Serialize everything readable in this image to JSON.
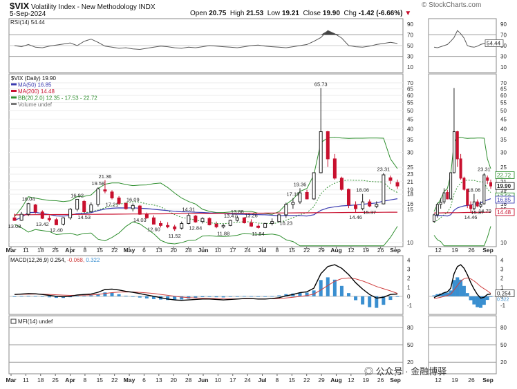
{
  "header": {
    "symbol": "$VIX",
    "name": "Volatility Index - New Methodology",
    "exchange": "INDX",
    "date": "5-Sep-2024",
    "open_label": "Open",
    "open": "20.75",
    "high_label": "High",
    "high": "21.53",
    "low_label": "Low",
    "low": "19.21",
    "close_label": "Close",
    "close": "19.90",
    "chg_label": "Chg",
    "chg": "-1.42 (-6.66%)",
    "copyright": "© StockCharts.com"
  },
  "watermark": "公众号 · 金融博驿",
  "colors": {
    "up": "#222222",
    "down": "#c8102e",
    "ma50": "#3b3bb0",
    "ma200": "#c8102e",
    "bb": "#2f8f2f",
    "macd": "#000000",
    "signal": "#d04040",
    "hist": "#3a8fd0",
    "rsi": "#555555"
  },
  "x_axis": {
    "labels": [
      "Mar",
      "11",
      "18",
      "25",
      "Apr",
      "8",
      "15",
      "22",
      "May",
      "6",
      "13",
      "20",
      "28",
      "Jun",
      "10",
      "17",
      "24",
      "Jul",
      "8",
      "15",
      "22",
      "29",
      "Aug",
      "12",
      "19",
      "26",
      "Sep"
    ],
    "zoom_labels": [
      "12",
      "19",
      "26",
      "Sep"
    ]
  },
  "chart_data": [
    {
      "type": "line",
      "name": "rsi",
      "label": "RSI(14) 54.44",
      "ylim": [
        0,
        100
      ],
      "ticks": [
        10,
        30,
        50,
        70,
        90
      ],
      "levels": [
        30,
        70
      ],
      "last_value": "54.44",
      "values": [
        50,
        48,
        52,
        47,
        46,
        49,
        51,
        53,
        55,
        50,
        58,
        62,
        56,
        49,
        47,
        45,
        46,
        44,
        43,
        45,
        47,
        49,
        48,
        46,
        45,
        47,
        46,
        48,
        50,
        49,
        48,
        47,
        46,
        48,
        50,
        51,
        49,
        48,
        47,
        46,
        48,
        50,
        52,
        58,
        65,
        78,
        72,
        64,
        50,
        48,
        47,
        49,
        52,
        54,
        56,
        54
      ]
    },
    {
      "type": "candlestick",
      "name": "price",
      "legend": [
        "$VIX (Daily) 19.90",
        "MA(50) 16.85",
        "MA(200) 14.48",
        "BB(20,2.0) 12.35 - 17.53 - 22.72",
        "Volume undef"
      ],
      "scale": "log",
      "ylim": [
        9.5,
        78
      ],
      "ticks": [
        10,
        15,
        16,
        18,
        19,
        21,
        23,
        25,
        30,
        35,
        40,
        45,
        50,
        55,
        60,
        65,
        70
      ],
      "ohlc": [
        [
          13.5,
          14.2,
          13.0,
          13.08
        ],
        [
          13.1,
          14.5,
          13.0,
          14.1
        ],
        [
          14.1,
          16.2,
          13.8,
          16.04
        ],
        [
          15.8,
          16.0,
          14.2,
          14.5
        ],
        [
          14.5,
          14.8,
          13.3,
          13.42
        ],
        [
          13.4,
          13.9,
          12.9,
          13.2
        ],
        [
          13.2,
          13.5,
          12.4,
          12.4
        ],
        [
          12.5,
          13.6,
          12.3,
          13.5
        ],
        [
          13.5,
          15.2,
          13.2,
          15.0
        ],
        [
          15.0,
          16.9,
          14.6,
          16.92
        ],
        [
          16.5,
          16.8,
          14.5,
          14.53
        ],
        [
          14.6,
          16.3,
          14.4,
          15.8
        ],
        [
          15.9,
          19.58,
          15.5,
          19.2
        ],
        [
          19.0,
          21.36,
          18.2,
          18.7
        ],
        [
          18.5,
          18.9,
          16.9,
          17.21
        ],
        [
          17.2,
          17.6,
          15.8,
          16.1
        ],
        [
          16.1,
          16.3,
          14.9,
          15.1
        ],
        [
          15.1,
          16.09,
          14.6,
          15.7
        ],
        [
          15.6,
          15.8,
          14.0,
          14.1
        ],
        [
          14.1,
          14.4,
          13.3,
          13.5
        ],
        [
          13.5,
          13.9,
          12.5,
          12.5
        ],
        [
          12.6,
          13.0,
          12.0,
          12.3
        ],
        [
          12.3,
          12.8,
          11.9,
          12.1
        ],
        [
          12.1,
          12.4,
          11.52,
          11.8
        ],
        [
          11.9,
          12.9,
          11.7,
          12.6
        ],
        [
          12.6,
          14.31,
          12.5,
          13.9
        ],
        [
          13.8,
          14.0,
          12.7,
          12.84
        ],
        [
          12.9,
          13.6,
          12.6,
          13.4
        ],
        [
          13.4,
          13.6,
          12.3,
          12.4
        ],
        [
          12.5,
          12.9,
          11.9,
          12.1
        ],
        [
          12.1,
          12.5,
          11.88,
          12.3
        ],
        [
          12.3,
          13.2,
          12.2,
          13.1
        ],
        [
          13.1,
          13.88,
          12.9,
          13.5
        ],
        [
          13.5,
          13.6,
          12.6,
          12.7
        ],
        [
          12.7,
          13.26,
          12.1,
          12.2
        ],
        [
          12.2,
          12.5,
          11.84,
          12.0
        ],
        [
          12.0,
          12.7,
          11.9,
          12.6
        ],
        [
          12.6,
          13.4,
          12.3,
          12.9
        ],
        [
          12.9,
          14.2,
          12.8,
          14.0
        ],
        [
          14.0,
          16.23,
          13.5,
          15.9
        ],
        [
          15.9,
          17.19,
          15.1,
          16.3
        ],
        [
          16.4,
          19.36,
          16.0,
          18.3
        ],
        [
          18.4,
          19.0,
          16.9,
          17.0
        ],
        [
          17.0,
          23.39,
          16.8,
          23.4
        ],
        [
          23.4,
          65.73,
          23.2,
          38.6
        ],
        [
          38.6,
          39.0,
          25.1,
          27.7
        ],
        [
          27.7,
          29.4,
          21.5,
          21.9
        ],
        [
          21.9,
          22.3,
          18.8,
          19.1
        ],
        [
          19.1,
          19.3,
          15.2,
          15.8
        ],
        [
          15.8,
          16.5,
          14.46,
          15.1
        ],
        [
          15.1,
          18.06,
          14.8,
          16.4
        ],
        [
          16.4,
          16.9,
          15.37,
          15.6
        ],
        [
          15.5,
          16.5,
          15.2,
          15.9
        ],
        [
          16.0,
          23.31,
          15.9,
          22.8
        ],
        [
          22.0,
          22.6,
          20.4,
          21.3
        ],
        [
          20.75,
          21.53,
          19.21,
          19.9
        ]
      ],
      "annotations": {
        "high": [
          "16.04",
          "16.92",
          "19.58",
          "21.36",
          "16.09",
          "14.31",
          "13.47",
          "13.88",
          "13.26",
          "19.36",
          "17.19",
          "65.73",
          "18.06",
          "23.31"
        ],
        "low": [
          "13.08",
          "13.42",
          "12.40",
          "14.53",
          "17.21",
          "14.03",
          "12.60",
          "11.52",
          "12.84",
          "11.88",
          "11.84",
          "16.23",
          "14.46",
          "15.37"
        ],
        "zoom_high": [
          "23.31",
          "18.06"
        ],
        "zoom_low": [
          "14.46",
          "15.37",
          "14.79"
        ]
      },
      "last_values": {
        "close": "19.90",
        "bb_upper": "22.72",
        "bb_mid": "17.53",
        "ma50": "16.85",
        "bb_lower": "12.35",
        "ma200": "14.48"
      }
    },
    {
      "type": "line",
      "name": "macd",
      "label": "MACD(12,26,9)",
      "label_values": [
        "0.254",
        "-0.068",
        "0.322"
      ],
      "ylim": [
        -2,
        4.5
      ],
      "ticks": [
        -1,
        0,
        1,
        2,
        3,
        4
      ],
      "last_value": "0.254",
      "zoom_tags": [
        "0.254",
        "0.322"
      ],
      "macd": [
        0.2,
        0.25,
        0.3,
        0.28,
        0.2,
        0.1,
        0.0,
        -0.05,
        0.0,
        0.15,
        0.2,
        0.25,
        0.45,
        0.75,
        0.8,
        0.7,
        0.55,
        0.45,
        0.3,
        0.15,
        0.0,
        -0.15,
        -0.3,
        -0.4,
        -0.45,
        -0.4,
        -0.35,
        -0.3,
        -0.3,
        -0.35,
        -0.4,
        -0.35,
        -0.3,
        -0.25,
        -0.25,
        -0.3,
        -0.3,
        -0.25,
        -0.15,
        0.05,
        0.2,
        0.4,
        0.5,
        0.9,
        2.5,
        3.3,
        3.5,
        3.1,
        2.4,
        1.5,
        0.8,
        0.2,
        -0.2,
        -0.1,
        0.2,
        0.254
      ],
      "signal": [
        0.2,
        0.22,
        0.24,
        0.25,
        0.24,
        0.21,
        0.17,
        0.13,
        0.1,
        0.11,
        0.13,
        0.15,
        0.21,
        0.32,
        0.41,
        0.47,
        0.48,
        0.48,
        0.44,
        0.38,
        0.31,
        0.21,
        0.11,
        0.0,
        -0.09,
        -0.15,
        -0.19,
        -0.21,
        -0.23,
        -0.25,
        -0.28,
        -0.29,
        -0.29,
        -0.28,
        -0.27,
        -0.28,
        -0.28,
        -0.27,
        -0.25,
        -0.19,
        -0.11,
        -0.01,
        0.09,
        0.25,
        0.7,
        1.2,
        1.66,
        1.95,
        2.04,
        1.93,
        1.7,
        1.4,
        1.08,
        0.84,
        0.6,
        0.322
      ]
    },
    {
      "type": "line",
      "name": "mfi",
      "label": "MFI(14) undef",
      "ylim": [
        0,
        100
      ],
      "ticks": [
        20,
        50,
        80
      ],
      "values": []
    }
  ]
}
